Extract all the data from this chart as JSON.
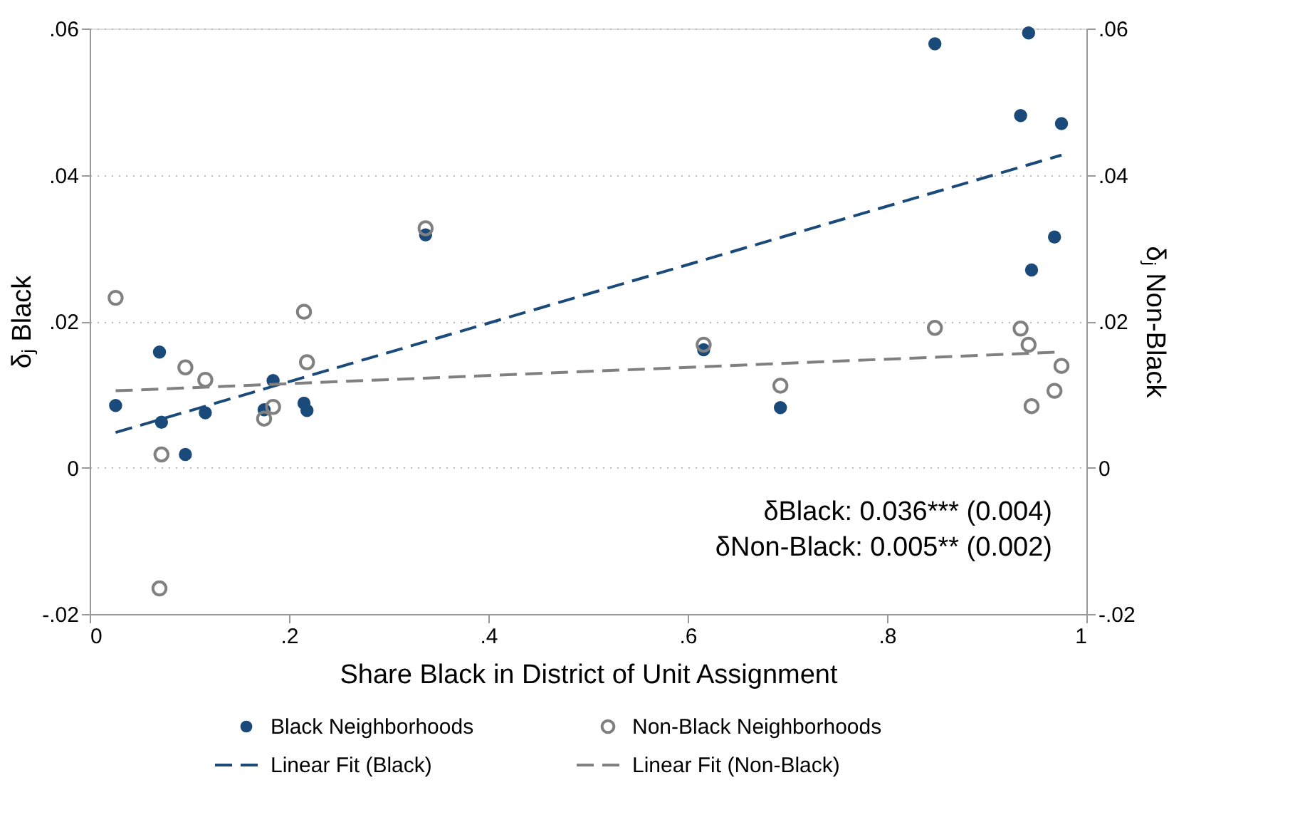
{
  "chart_data": {
    "type": "scatter",
    "xlabel": "Share Black in District of Unit Assignment",
    "ylabel": "δⱼ Black",
    "y2label": "δⱼ Non-Black",
    "series": [
      {
        "name": "Black Neighborhoods",
        "marker": "circle",
        "color": "#1a4a7a",
        "x": [
          0.026,
          0.07,
          0.072,
          0.096,
          0.116,
          0.175,
          0.184,
          0.215,
          0.218,
          0.337,
          0.616,
          0.693,
          0.848,
          0.942,
          0.934,
          0.975,
          0.968,
          0.945
        ],
        "values": [
          0.0085,
          0.0158,
          0.0062,
          0.0018,
          0.0075,
          0.0079,
          0.0119,
          0.0088,
          0.0078,
          0.0318,
          0.0161,
          0.0082,
          0.0579,
          0.0594,
          0.0481,
          0.047,
          0.0315,
          0.027
        ]
      },
      {
        "name": "Non-Black Neighborhoods",
        "marker": "circle",
        "color": "#808080",
        "x": [
          0.026,
          0.07,
          0.072,
          0.096,
          0.116,
          0.175,
          0.184,
          0.215,
          0.218,
          0.337,
          0.616,
          0.693,
          0.848,
          0.934,
          0.942,
          0.975,
          0.968,
          0.945
        ],
        "values": [
          0.0232,
          -0.0165,
          0.0018,
          0.0137,
          0.012,
          0.0067,
          0.0083,
          0.0213,
          0.0144,
          0.0327,
          0.0168,
          0.0112,
          0.0191,
          0.019,
          0.0168,
          0.0139,
          0.0105,
          0.0084
        ]
      },
      {
        "name": "Linear Fit (Black)",
        "type": "line",
        "line_style": "dashed",
        "color": "#1a4a7a",
        "x": [
          0.026,
          0.975
        ],
        "values": [
          0.0048,
          0.0427
        ]
      },
      {
        "name": "Linear Fit (Non-Black)",
        "type": "line",
        "line_style": "dashed",
        "color": "#808080",
        "x": [
          0.026,
          0.975
        ],
        "values": [
          0.0105,
          0.0158
        ]
      }
    ],
    "xlim": [
      0,
      1
    ],
    "xticks": [
      0,
      {
        "value": 0.2,
        "label": ".2"
      },
      {
        "value": 0.4,
        "label": ".4"
      },
      {
        "value": 0.6,
        "label": ".6"
      },
      {
        "value": 0.8,
        "label": ".8"
      },
      1
    ],
    "ylim": [
      -0.02,
      0.06
    ],
    "yticks": [
      {
        "value": -0.02,
        "label": "-.02"
      },
      0,
      {
        "value": 0.02,
        "label": ".02"
      },
      {
        "value": 0.04,
        "label": ".04"
      },
      {
        "value": 0.06,
        "label": ".06"
      }
    ],
    "y2lim": [
      -0.02,
      0.06
    ],
    "y2ticks": [
      {
        "value": -0.02,
        "label": "-.02"
      },
      0,
      {
        "value": 0.02,
        "label": ".02"
      },
      {
        "value": 0.04,
        "label": ".04"
      },
      {
        "value": 0.06,
        "label": ".06"
      }
    ],
    "grid": "y",
    "legend": "bottom",
    "annotations": [
      "δBlack: 0.036*** (0.004)",
      "δNon-Black: 0.005** (0.002)"
    ]
  }
}
